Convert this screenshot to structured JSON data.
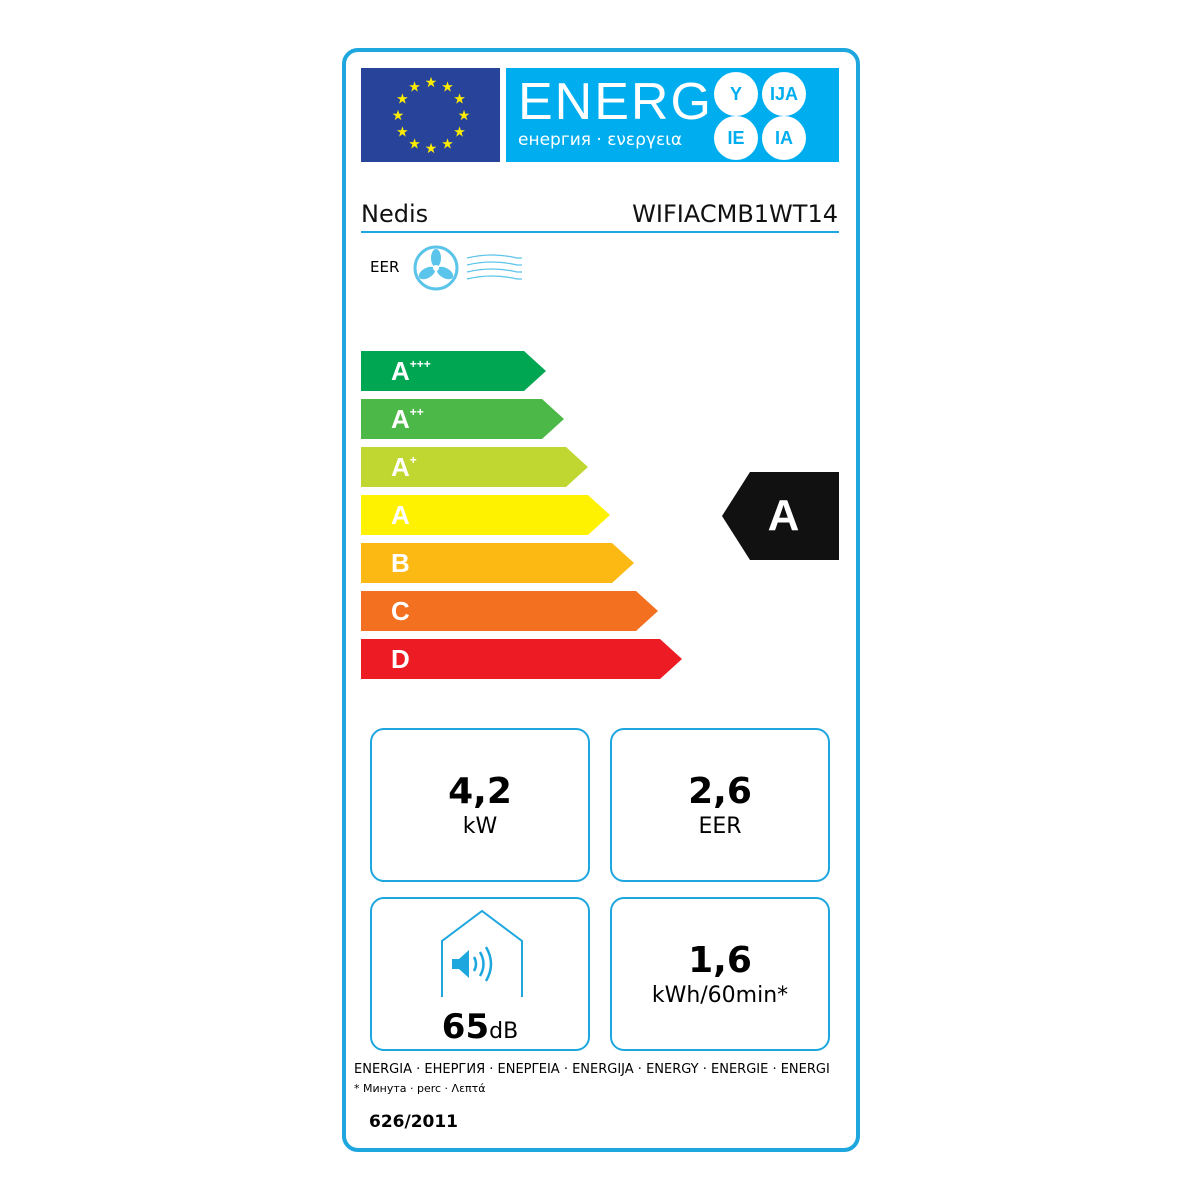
{
  "header": {
    "energy_title": "ENERG",
    "energy_subtitle": "енергия · ενεργεια",
    "suffixes": [
      "Y",
      "IJA",
      "IE",
      "IA"
    ]
  },
  "supplier": "Nedis",
  "model": "WIFIACMB1WT14",
  "mode_label": "EER",
  "scale": [
    {
      "letter": "A",
      "sup": "+++",
      "color": "#00a651"
    },
    {
      "letter": "A",
      "sup": "++",
      "color": "#4cb848"
    },
    {
      "letter": "A",
      "sup": "+",
      "color": "#bfd730"
    },
    {
      "letter": "A",
      "sup": "",
      "color": "#fff200"
    },
    {
      "letter": "B",
      "sup": "",
      "color": "#fdb913"
    },
    {
      "letter": "C",
      "sup": "",
      "color": "#f37021"
    },
    {
      "letter": "D",
      "sup": "",
      "color": "#ed1c24"
    }
  ],
  "rating": "A",
  "specs": {
    "capacity": {
      "value": "4,2",
      "unit": "kW"
    },
    "eer": {
      "value": "2,6",
      "unit": "EER"
    },
    "noise": {
      "value": "65",
      "unit": "dB"
    },
    "consumption": {
      "value": "1,6",
      "unit": "kWh/60min*"
    }
  },
  "footer": {
    "languages": "ENERGIA · ЕНЕРГИЯ · ΕΝΕΡΓΕΙΑ · ENERGIJA · ENERGY · ENERGIE · ENERGI",
    "note": "* Минута · perc · Λεπτά",
    "regulation": "626/2011"
  },
  "colors": {
    "frame": "#1ea6de",
    "flag": "#27449a",
    "energy": "#00aeef"
  }
}
